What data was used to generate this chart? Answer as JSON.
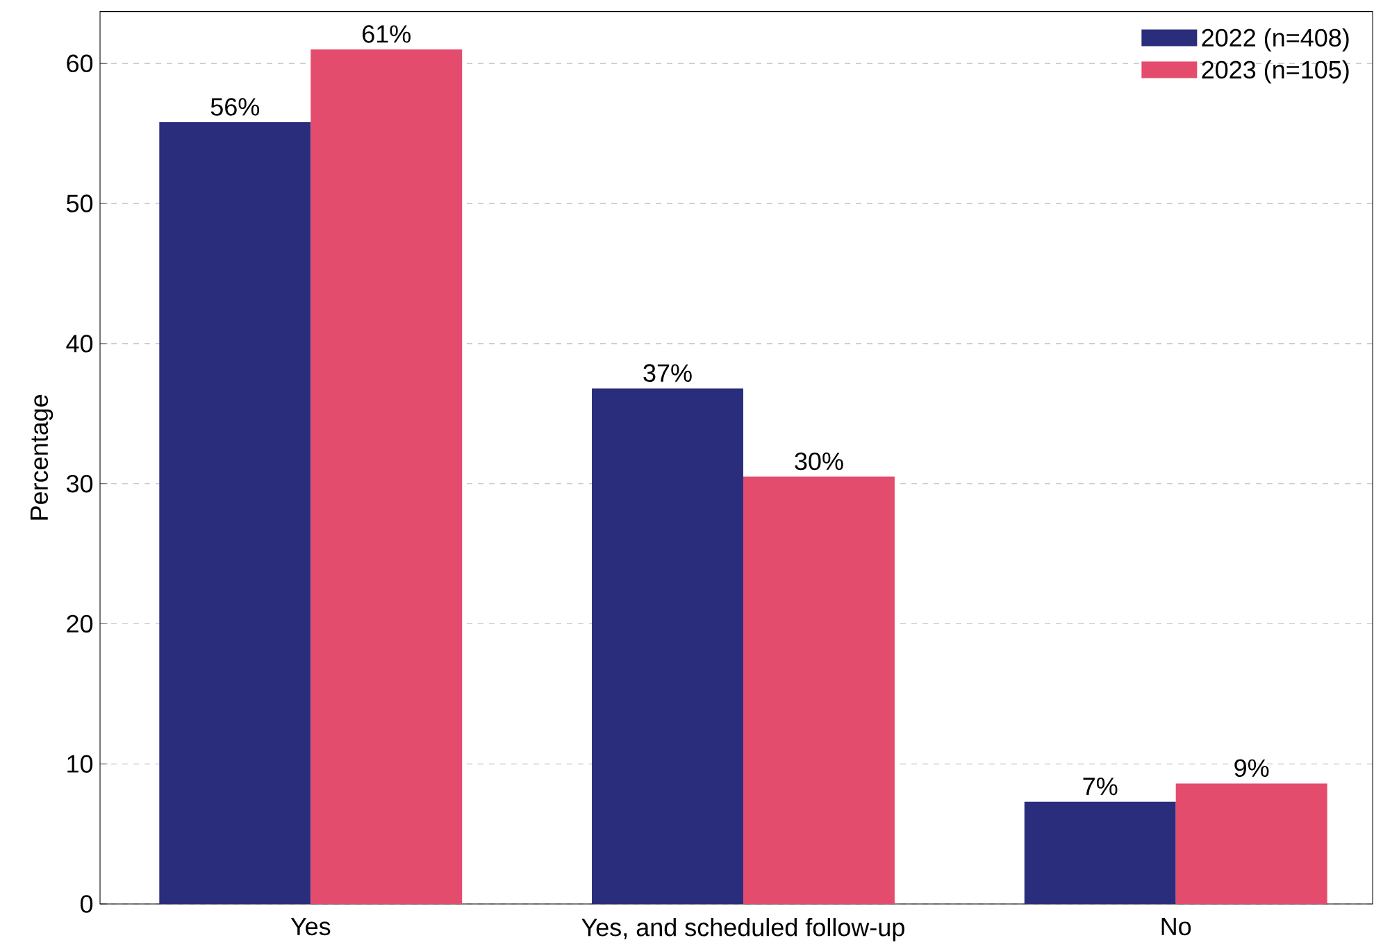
{
  "chart_data": {
    "type": "bar",
    "ylabel": "Percentage",
    "categories": [
      "Yes",
      "Yes, and scheduled follow-up",
      "No"
    ],
    "series": [
      {
        "name": "2022 (n=408)",
        "color": "#2a2d7c",
        "values": [
          55.8,
          36.8,
          7.3
        ],
        "value_labels": [
          "56%",
          "37%",
          "7%"
        ]
      },
      {
        "name": "2023 (n=105)",
        "color": "#e44c6e",
        "values": [
          61.0,
          30.5,
          8.6
        ],
        "value_labels": [
          "61%",
          "30%",
          "9%"
        ]
      }
    ],
    "ylim": [
      0,
      63.7
    ],
    "yticks": [
      0,
      10,
      20,
      30,
      40,
      50,
      60
    ],
    "grid": "y",
    "legend": "top right"
  }
}
